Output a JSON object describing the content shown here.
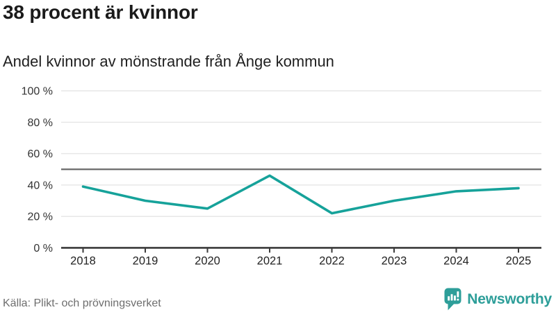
{
  "header": {
    "title": "38 procent är kvinnor",
    "subtitle": "Andel kvinnor av mönstrande från Ånge kommun"
  },
  "footer": {
    "source": "Källa: Plikt- och prövningsverket",
    "brand_name": "Newsworthy"
  },
  "chart_data": {
    "type": "line",
    "title": "Andel kvinnor av mönstrande från Ånge kommun",
    "x": [
      "2018",
      "2019",
      "2020",
      "2021",
      "2022",
      "2023",
      "2024",
      "2025"
    ],
    "series": [
      {
        "name": "Andel kvinnor",
        "values": [
          39,
          30,
          25,
          46,
          22,
          30,
          36,
          38
        ]
      }
    ],
    "unit": "%",
    "ylim": [
      0,
      100
    ],
    "y_tick_values": [
      0,
      20,
      40,
      60,
      80,
      100
    ],
    "y_tick_suffix": " %",
    "reference_line_value": 50,
    "grid": true,
    "legend": false,
    "colors": {
      "line": "#16a29a",
      "grid": "#e6e6e6",
      "reference_line": "#707070",
      "axis": "#3a3a3a",
      "tick_label": "#333333",
      "brand_teal": "#2d9e99"
    }
  }
}
